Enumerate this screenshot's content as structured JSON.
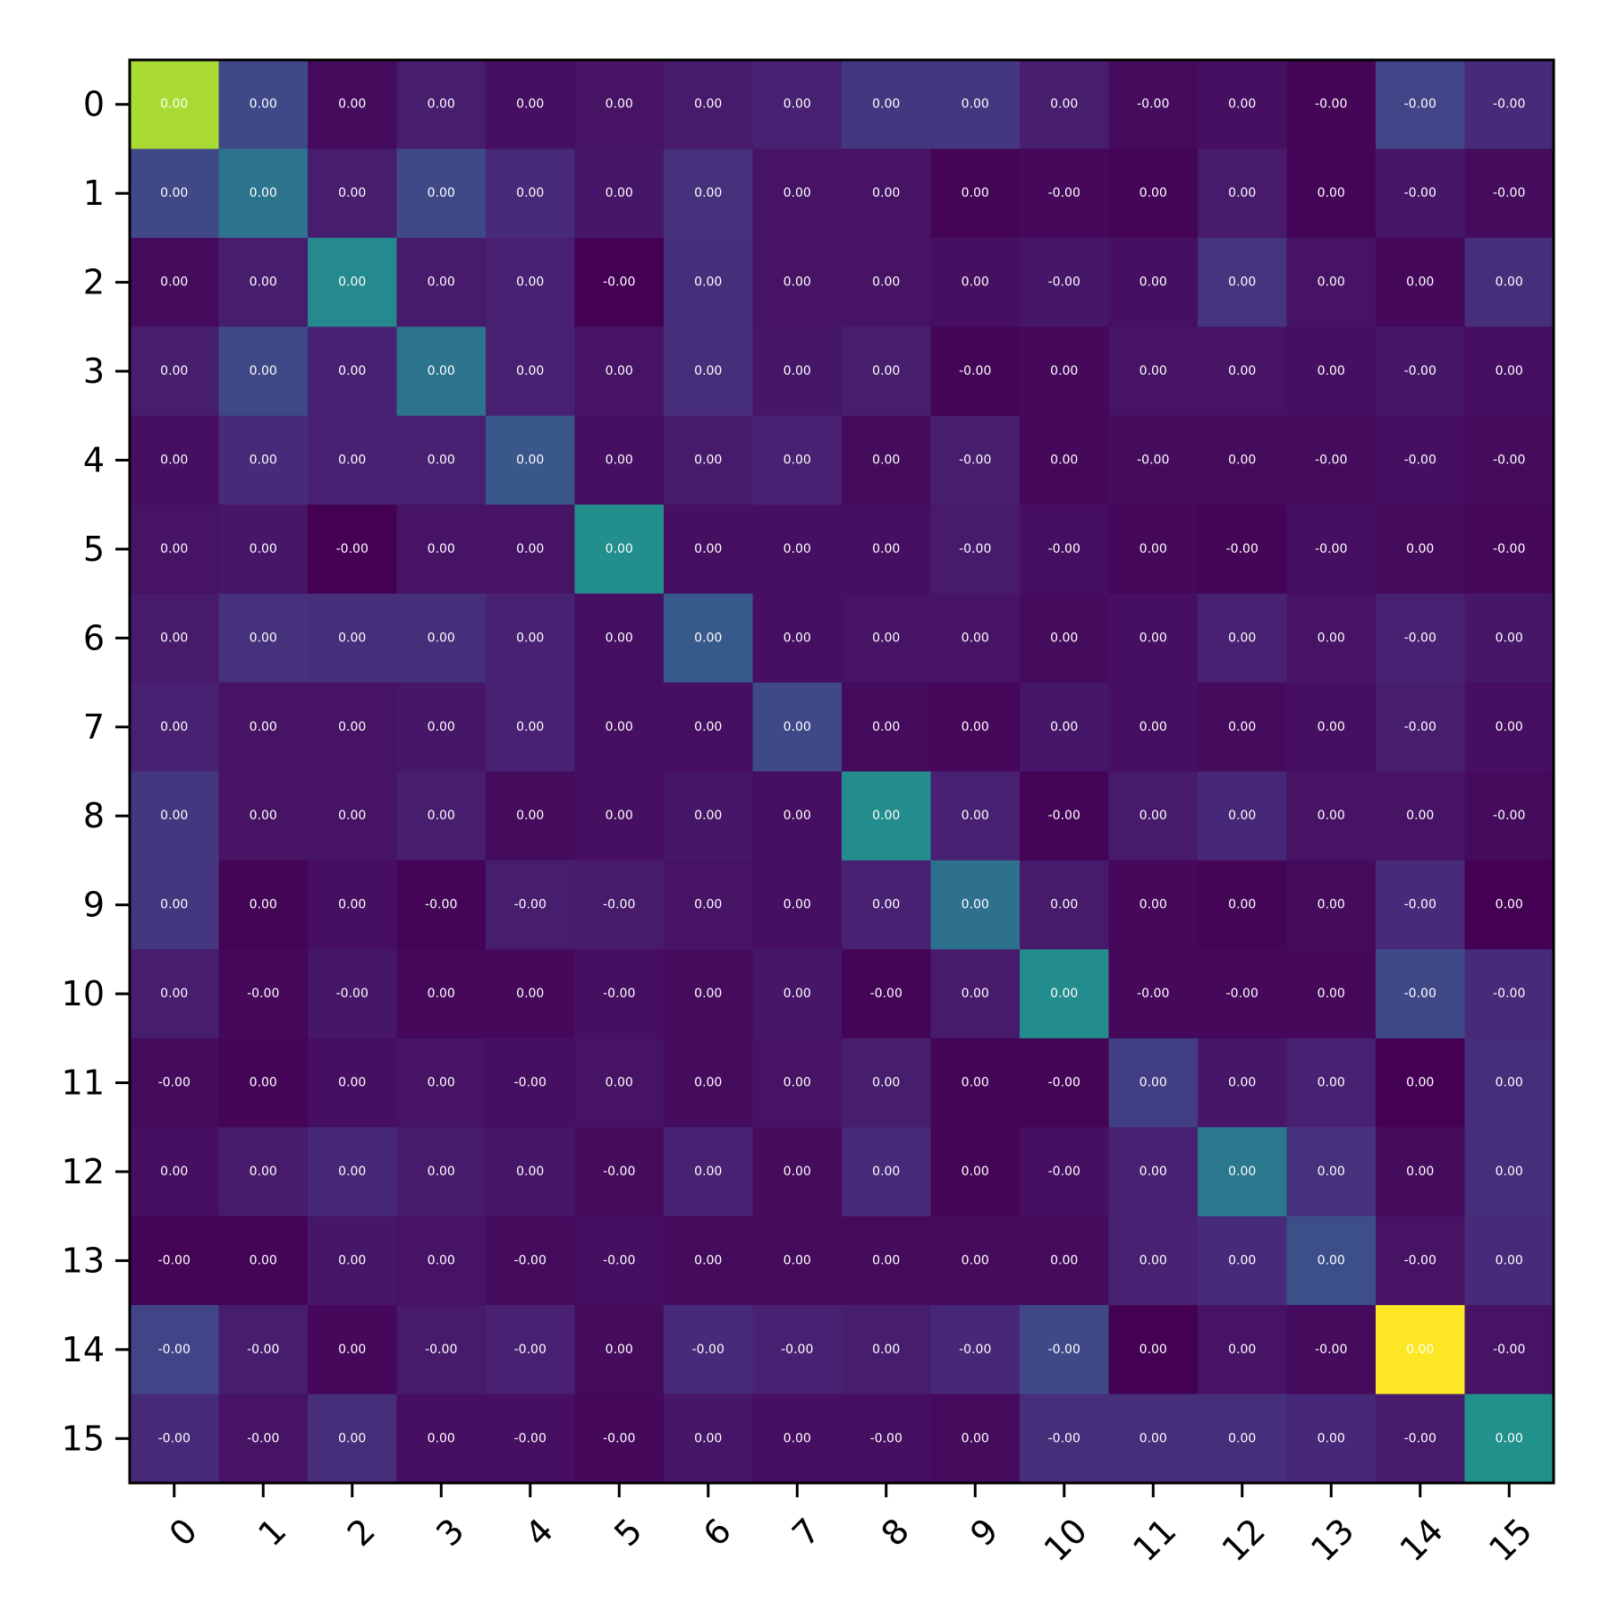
{
  "chart_data": {
    "type": "heatmap",
    "title": "",
    "xlabel": "",
    "ylabel": "",
    "colormap": "viridis",
    "x_categories": [
      "0",
      "1",
      "2",
      "3",
      "4",
      "5",
      "6",
      "7",
      "8",
      "9",
      "10",
      "11",
      "12",
      "13",
      "14",
      "15"
    ],
    "y_categories": [
      "0",
      "1",
      "2",
      "3",
      "4",
      "5",
      "6",
      "7",
      "8",
      "9",
      "10",
      "11",
      "12",
      "13",
      "14",
      "15"
    ],
    "intensity_range": [
      0,
      1
    ],
    "intensity": [
      [
        0.87,
        0.22,
        0.03,
        0.08,
        0.04,
        0.05,
        0.07,
        0.09,
        0.16,
        0.16,
        0.08,
        0.03,
        0.04,
        0.01,
        0.2,
        0.12
      ],
      [
        0.22,
        0.38,
        0.08,
        0.22,
        0.12,
        0.06,
        0.14,
        0.05,
        0.05,
        0.01,
        0.02,
        0.01,
        0.07,
        0.01,
        0.06,
        0.03
      ],
      [
        0.03,
        0.08,
        0.47,
        0.07,
        0.09,
        0.0,
        0.13,
        0.05,
        0.05,
        0.04,
        0.06,
        0.04,
        0.15,
        0.05,
        0.02,
        0.13
      ],
      [
        0.08,
        0.22,
        0.09,
        0.38,
        0.09,
        0.05,
        0.13,
        0.06,
        0.08,
        0.01,
        0.02,
        0.05,
        0.05,
        0.04,
        0.06,
        0.04
      ],
      [
        0.04,
        0.12,
        0.09,
        0.09,
        0.27,
        0.04,
        0.07,
        0.09,
        0.03,
        0.08,
        0.02,
        0.03,
        0.03,
        0.03,
        0.04,
        0.03
      ],
      [
        0.05,
        0.06,
        0.0,
        0.05,
        0.05,
        0.49,
        0.04,
        0.04,
        0.04,
        0.07,
        0.04,
        0.02,
        0.01,
        0.04,
        0.03,
        0.02
      ],
      [
        0.07,
        0.14,
        0.13,
        0.13,
        0.09,
        0.04,
        0.28,
        0.04,
        0.05,
        0.05,
        0.03,
        0.04,
        0.09,
        0.05,
        0.09,
        0.06
      ],
      [
        0.09,
        0.05,
        0.05,
        0.06,
        0.09,
        0.04,
        0.04,
        0.22,
        0.03,
        0.02,
        0.06,
        0.04,
        0.03,
        0.04,
        0.08,
        0.04
      ],
      [
        0.16,
        0.05,
        0.05,
        0.08,
        0.03,
        0.04,
        0.06,
        0.04,
        0.48,
        0.09,
        0.01,
        0.07,
        0.11,
        0.05,
        0.05,
        0.03
      ],
      [
        0.16,
        0.01,
        0.04,
        0.01,
        0.08,
        0.07,
        0.05,
        0.04,
        0.09,
        0.37,
        0.07,
        0.02,
        0.01,
        0.03,
        0.12,
        0.0
      ],
      [
        0.08,
        0.02,
        0.06,
        0.02,
        0.02,
        0.04,
        0.03,
        0.06,
        0.01,
        0.07,
        0.48,
        0.02,
        0.02,
        0.02,
        0.22,
        0.12
      ],
      [
        0.03,
        0.01,
        0.04,
        0.05,
        0.04,
        0.05,
        0.03,
        0.05,
        0.08,
        0.01,
        0.01,
        0.18,
        0.06,
        0.09,
        0.0,
        0.13
      ],
      [
        0.04,
        0.07,
        0.11,
        0.07,
        0.06,
        0.03,
        0.09,
        0.03,
        0.12,
        0.01,
        0.04,
        0.09,
        0.4,
        0.14,
        0.03,
        0.13
      ],
      [
        0.01,
        0.01,
        0.06,
        0.05,
        0.03,
        0.04,
        0.03,
        0.03,
        0.03,
        0.03,
        0.03,
        0.09,
        0.12,
        0.24,
        0.05,
        0.12
      ],
      [
        0.2,
        0.08,
        0.02,
        0.07,
        0.09,
        0.03,
        0.12,
        0.09,
        0.08,
        0.11,
        0.22,
        0.0,
        0.05,
        0.03,
        1.0,
        0.05
      ],
      [
        0.12,
        0.05,
        0.13,
        0.04,
        0.04,
        0.02,
        0.06,
        0.04,
        0.04,
        0.03,
        0.13,
        0.13,
        0.13,
        0.11,
        0.07,
        0.5
      ]
    ],
    "cell_labels": [
      [
        "0.00",
        "0.00",
        "0.00",
        "0.00",
        "0.00",
        "0.00",
        "0.00",
        "0.00",
        "0.00",
        "0.00",
        "0.00",
        "-0.00",
        "0.00",
        "-0.00",
        "-0.00",
        "-0.00"
      ],
      [
        "0.00",
        "0.00",
        "0.00",
        "0.00",
        "0.00",
        "0.00",
        "0.00",
        "0.00",
        "0.00",
        "0.00",
        "-0.00",
        "0.00",
        "0.00",
        "0.00",
        "-0.00",
        "-0.00"
      ],
      [
        "0.00",
        "0.00",
        "0.00",
        "0.00",
        "0.00",
        "-0.00",
        "0.00",
        "0.00",
        "0.00",
        "0.00",
        "-0.00",
        "0.00",
        "0.00",
        "0.00",
        "0.00",
        "0.00"
      ],
      [
        "0.00",
        "0.00",
        "0.00",
        "0.00",
        "0.00",
        "0.00",
        "0.00",
        "0.00",
        "0.00",
        "-0.00",
        "0.00",
        "0.00",
        "0.00",
        "0.00",
        "-0.00",
        "0.00"
      ],
      [
        "0.00",
        "0.00",
        "0.00",
        "0.00",
        "0.00",
        "0.00",
        "0.00",
        "0.00",
        "0.00",
        "-0.00",
        "0.00",
        "-0.00",
        "0.00",
        "-0.00",
        "-0.00",
        "-0.00"
      ],
      [
        "0.00",
        "0.00",
        "-0.00",
        "0.00",
        "0.00",
        "0.00",
        "0.00",
        "0.00",
        "0.00",
        "-0.00",
        "-0.00",
        "0.00",
        "-0.00",
        "-0.00",
        "0.00",
        "-0.00"
      ],
      [
        "0.00",
        "0.00",
        "0.00",
        "0.00",
        "0.00",
        "0.00",
        "0.00",
        "0.00",
        "0.00",
        "0.00",
        "0.00",
        "0.00",
        "0.00",
        "0.00",
        "-0.00",
        "0.00"
      ],
      [
        "0.00",
        "0.00",
        "0.00",
        "0.00",
        "0.00",
        "0.00",
        "0.00",
        "0.00",
        "0.00",
        "0.00",
        "0.00",
        "0.00",
        "0.00",
        "0.00",
        "-0.00",
        "0.00"
      ],
      [
        "0.00",
        "0.00",
        "0.00",
        "0.00",
        "0.00",
        "0.00",
        "0.00",
        "0.00",
        "0.00",
        "0.00",
        "-0.00",
        "0.00",
        "0.00",
        "0.00",
        "0.00",
        "-0.00"
      ],
      [
        "0.00",
        "0.00",
        "0.00",
        "-0.00",
        "-0.00",
        "-0.00",
        "0.00",
        "0.00",
        "0.00",
        "0.00",
        "0.00",
        "0.00",
        "0.00",
        "0.00",
        "-0.00",
        "0.00"
      ],
      [
        "0.00",
        "-0.00",
        "-0.00",
        "0.00",
        "0.00",
        "-0.00",
        "0.00",
        "0.00",
        "-0.00",
        "0.00",
        "0.00",
        "-0.00",
        "-0.00",
        "0.00",
        "-0.00",
        "-0.00"
      ],
      [
        "-0.00",
        "0.00",
        "0.00",
        "0.00",
        "-0.00",
        "0.00",
        "0.00",
        "0.00",
        "0.00",
        "0.00",
        "-0.00",
        "0.00",
        "0.00",
        "0.00",
        "0.00",
        "0.00"
      ],
      [
        "0.00",
        "0.00",
        "0.00",
        "0.00",
        "0.00",
        "-0.00",
        "0.00",
        "0.00",
        "0.00",
        "0.00",
        "-0.00",
        "0.00",
        "0.00",
        "0.00",
        "0.00",
        "0.00"
      ],
      [
        "-0.00",
        "0.00",
        "0.00",
        "0.00",
        "-0.00",
        "-0.00",
        "0.00",
        "0.00",
        "0.00",
        "0.00",
        "0.00",
        "0.00",
        "0.00",
        "0.00",
        "-0.00",
        "0.00"
      ],
      [
        "-0.00",
        "-0.00",
        "0.00",
        "-0.00",
        "-0.00",
        "0.00",
        "-0.00",
        "-0.00",
        "0.00",
        "-0.00",
        "-0.00",
        "0.00",
        "0.00",
        "-0.00",
        "0.00",
        "-0.00"
      ],
      [
        "-0.00",
        "-0.00",
        "0.00",
        "0.00",
        "-0.00",
        "-0.00",
        "0.00",
        "0.00",
        "-0.00",
        "0.00",
        "-0.00",
        "0.00",
        "0.00",
        "0.00",
        "-0.00",
        "0.00"
      ]
    ],
    "grid": false,
    "colorbar": false,
    "x_tick_rotation": 45
  }
}
